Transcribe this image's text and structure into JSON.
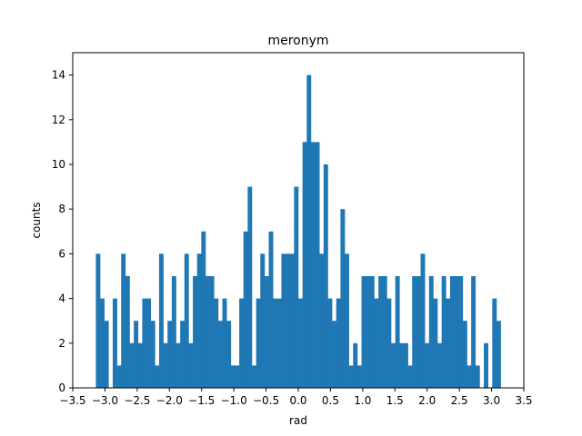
{
  "chart_data": {
    "type": "bar",
    "title": "meronym",
    "xlabel": "rad",
    "ylabel": "counts",
    "xlim": [
      -3.5,
      3.5
    ],
    "ylim": [
      0,
      15
    ],
    "xticks": [
      -3.5,
      -3.0,
      -2.5,
      -2.0,
      -1.5,
      -1.0,
      -0.5,
      0.0,
      0.5,
      1.0,
      1.5,
      2.0,
      2.5,
      3.0,
      3.5
    ],
    "xtick_labels": [
      "−3.5",
      "−3.0",
      "−2.5",
      "−2.0",
      "−1.5",
      "−1.0",
      "−0.5",
      "0.0",
      "0.5",
      "1.0",
      "1.5",
      "2.0",
      "2.5",
      "3.0",
      "3.5"
    ],
    "yticks": [
      0,
      2,
      4,
      6,
      8,
      10,
      12,
      14
    ],
    "ytick_labels": [
      "0",
      "2",
      "4",
      "6",
      "8",
      "10",
      "12",
      "14"
    ],
    "bar_color": "#1f77b4",
    "bin_range": [
      -3.14159,
      3.14159
    ],
    "values": [
      6,
      4,
      3,
      0,
      4,
      1,
      6,
      5,
      2,
      3,
      2,
      4,
      4,
      3,
      1,
      6,
      2,
      3,
      5,
      2,
      3,
      6,
      2,
      5,
      6,
      7,
      5,
      5,
      4,
      3,
      4,
      3,
      1,
      1,
      4,
      7,
      9,
      1,
      4,
      6,
      5,
      7,
      4,
      4,
      6,
      6,
      6,
      9,
      4,
      11,
      14,
      11,
      11,
      6,
      10,
      4,
      3,
      4,
      8,
      6,
      1,
      2,
      1,
      5,
      5,
      5,
      4,
      5,
      5,
      4,
      2,
      5,
      2,
      2,
      1,
      5,
      5,
      6,
      2,
      5,
      4,
      2,
      5,
      4,
      5,
      5,
      5,
      3,
      1,
      5,
      1,
      0,
      2,
      0,
      4,
      3
    ]
  }
}
